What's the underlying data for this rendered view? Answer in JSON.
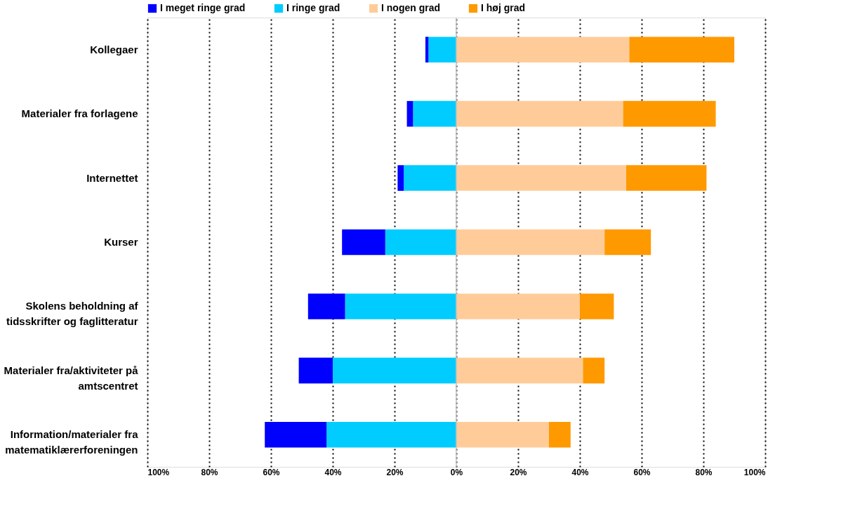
{
  "chart_data": {
    "type": "bar",
    "orientation": "horizontal",
    "stacked": true,
    "categories": [
      "Kollegaer",
      "Materialer fra forlagene",
      "Internettet",
      "Kurser",
      "Skolens beholdning af\ntidsskrifter og faglitteratur",
      "Materialer fra/aktiviteter på\namtscentret",
      "Information/materialer fra\nmatematiklærerforeningen"
    ],
    "series": [
      {
        "name": "I ringe grad",
        "color": "#00ccff",
        "values": [
          -9,
          -14,
          -17,
          -23,
          -36,
          -40,
          -42
        ]
      },
      {
        "name": "I meget ringe grad",
        "color": "#0000ff",
        "values": [
          -1,
          -2,
          -2,
          -14,
          -12,
          -11,
          -20
        ]
      },
      {
        "name": "I nogen grad",
        "color": "#ffcc99",
        "values": [
          56,
          54,
          55,
          48,
          40,
          41,
          30
        ]
      },
      {
        "name": "I høj grad",
        "color": "#ff9900",
        "values": [
          34,
          30,
          26,
          15,
          11,
          7,
          7
        ]
      }
    ],
    "xlim": [
      -100,
      100
    ],
    "xticks": [
      {
        "value": -100,
        "label": "100%"
      },
      {
        "value": -80,
        "label": "80%"
      },
      {
        "value": -60,
        "label": "60%"
      },
      {
        "value": -40,
        "label": "40%"
      },
      {
        "value": -20,
        "label": "20%"
      },
      {
        "value": 0,
        "label": "0%"
      },
      {
        "value": 20,
        "label": "20%"
      },
      {
        "value": 40,
        "label": "40%"
      },
      {
        "value": 60,
        "label": "60%"
      },
      {
        "value": 80,
        "label": "80%"
      },
      {
        "value": 100,
        "label": "100%"
      }
    ],
    "grid": "x",
    "legend": "top",
    "ref_lines": [
      {
        "axis": "x",
        "value": 0,
        "label": null,
        "color": "#c0c0c0"
      }
    ]
  }
}
